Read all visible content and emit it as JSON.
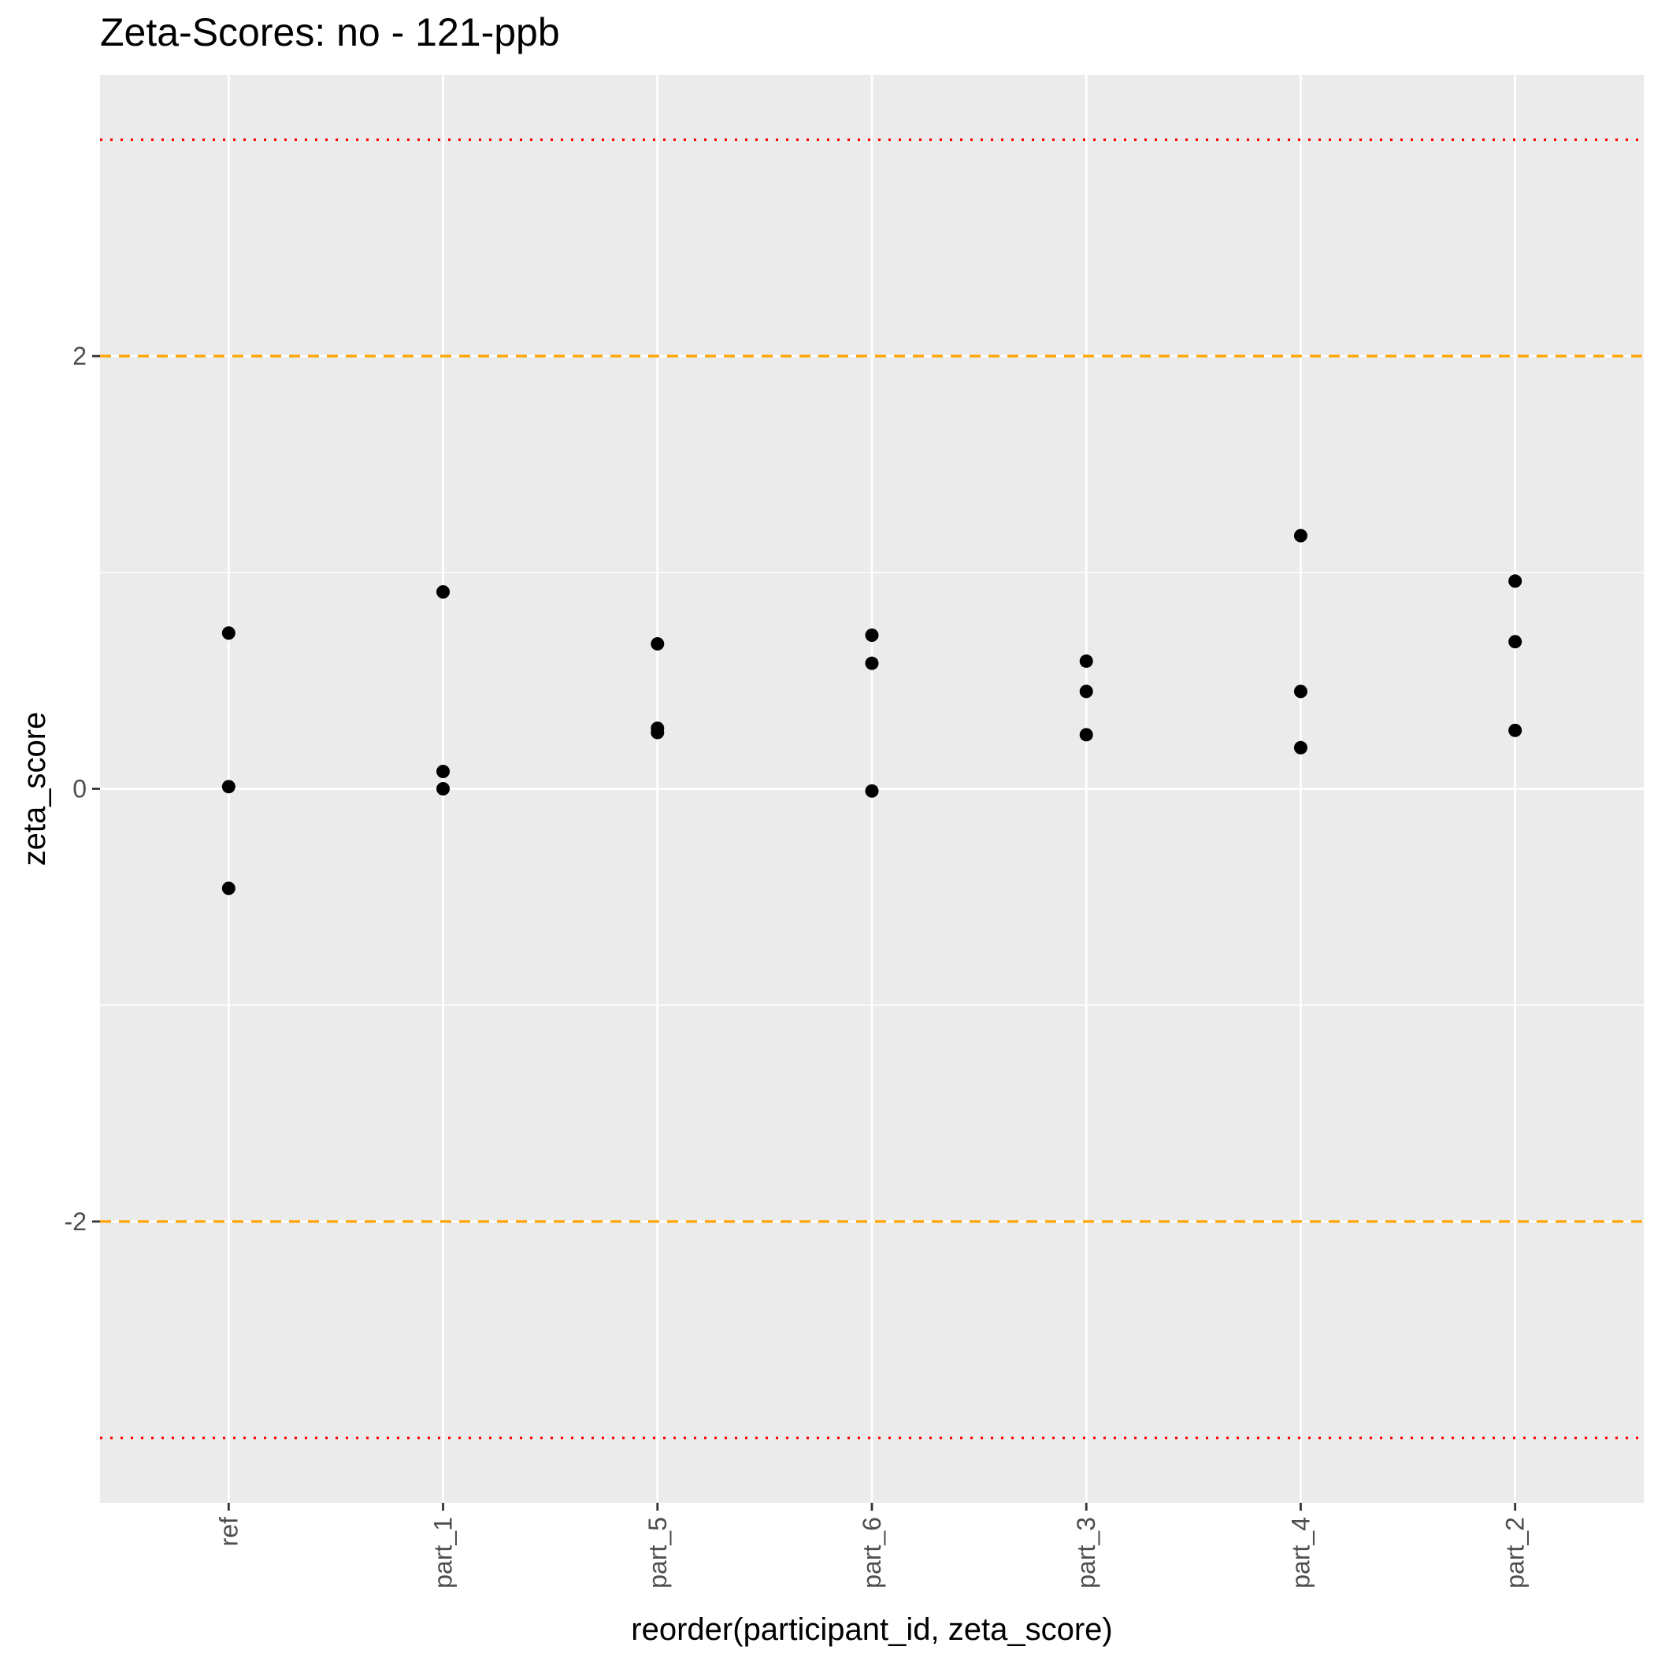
{
  "chart_data": {
    "type": "scatter",
    "title": "Zeta-Scores: no - 121-ppb",
    "xlabel": "reorder(participant_id, zeta_score)",
    "ylabel": "zeta_score",
    "categories": [
      "ref",
      "part_1",
      "part_5",
      "part_6",
      "part_3",
      "part_4",
      "part_2"
    ],
    "y_ticks": [
      -2,
      0,
      2
    ],
    "y_tick_labels": [
      "-2",
      "0",
      "2"
    ],
    "ylim": [
      -3.3,
      3.3
    ],
    "grid": true,
    "points": [
      {
        "category": "ref",
        "y": 0.72
      },
      {
        "category": "ref",
        "y": 0.01
      },
      {
        "category": "ref",
        "y": -0.46
      },
      {
        "category": "part_1",
        "y": 0.91
      },
      {
        "category": "part_1",
        "y": 0.08
      },
      {
        "category": "part_1",
        "y": 0.0
      },
      {
        "category": "part_5",
        "y": 0.67
      },
      {
        "category": "part_5",
        "y": 0.28
      },
      {
        "category": "part_5",
        "y": 0.26
      },
      {
        "category": "part_6",
        "y": 0.71
      },
      {
        "category": "part_6",
        "y": 0.58
      },
      {
        "category": "part_6",
        "y": -0.01
      },
      {
        "category": "part_3",
        "y": 0.59
      },
      {
        "category": "part_3",
        "y": 0.45
      },
      {
        "category": "part_3",
        "y": 0.25
      },
      {
        "category": "part_4",
        "y": 1.17
      },
      {
        "category": "part_4",
        "y": 0.45
      },
      {
        "category": "part_4",
        "y": 0.19
      },
      {
        "category": "part_2",
        "y": 0.96
      },
      {
        "category": "part_2",
        "y": 0.68
      },
      {
        "category": "part_2",
        "y": 0.27
      }
    ],
    "reference_lines": [
      {
        "y": 3,
        "style": "dotted",
        "color": "#ff0000"
      },
      {
        "y": 2,
        "style": "dashed",
        "color": "#ffa500"
      },
      {
        "y": -2,
        "style": "dashed",
        "color": "#ffa500"
      },
      {
        "y": -3,
        "style": "dotted",
        "color": "#ff0000"
      }
    ],
    "colors": {
      "panel_background": "#ebebeb",
      "grid": "#ffffff",
      "point": "#000000"
    }
  }
}
